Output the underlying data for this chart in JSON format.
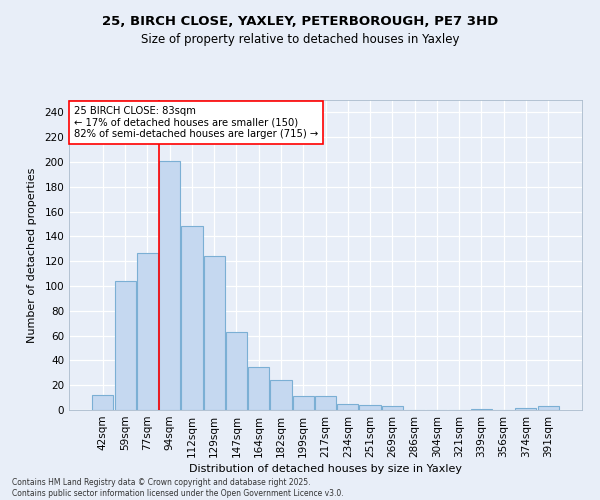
{
  "title_line1": "25, BIRCH CLOSE, YAXLEY, PETERBOROUGH, PE7 3HD",
  "title_line2": "Size of property relative to detached houses in Yaxley",
  "xlabel": "Distribution of detached houses by size in Yaxley",
  "ylabel": "Number of detached properties",
  "bar_labels": [
    "42sqm",
    "59sqm",
    "77sqm",
    "94sqm",
    "112sqm",
    "129sqm",
    "147sqm",
    "164sqm",
    "182sqm",
    "199sqm",
    "217sqm",
    "234sqm",
    "251sqm",
    "269sqm",
    "286sqm",
    "304sqm",
    "321sqm",
    "339sqm",
    "356sqm",
    "374sqm",
    "391sqm"
  ],
  "bar_values": [
    12,
    104,
    127,
    201,
    148,
    124,
    63,
    35,
    24,
    11,
    11,
    5,
    4,
    3,
    0,
    0,
    0,
    1,
    0,
    2,
    3
  ],
  "bar_color": "#c5d8f0",
  "bar_edge_color": "#7bafd4",
  "vline_x": 2.5,
  "vline_color": "red",
  "annotation_text": "25 BIRCH CLOSE: 83sqm\n← 17% of detached houses are smaller (150)\n82% of semi-detached houses are larger (715) →",
  "annotation_box_color": "white",
  "annotation_box_edge": "red",
  "background_color": "#e8eef8",
  "grid_color": "#ffffff",
  "ylim": [
    0,
    250
  ],
  "yticks": [
    0,
    20,
    40,
    60,
    80,
    100,
    120,
    140,
    160,
    180,
    200,
    220,
    240
  ],
  "footnote": "Contains HM Land Registry data © Crown copyright and database right 2025.\nContains public sector information licensed under the Open Government Licence v3.0."
}
